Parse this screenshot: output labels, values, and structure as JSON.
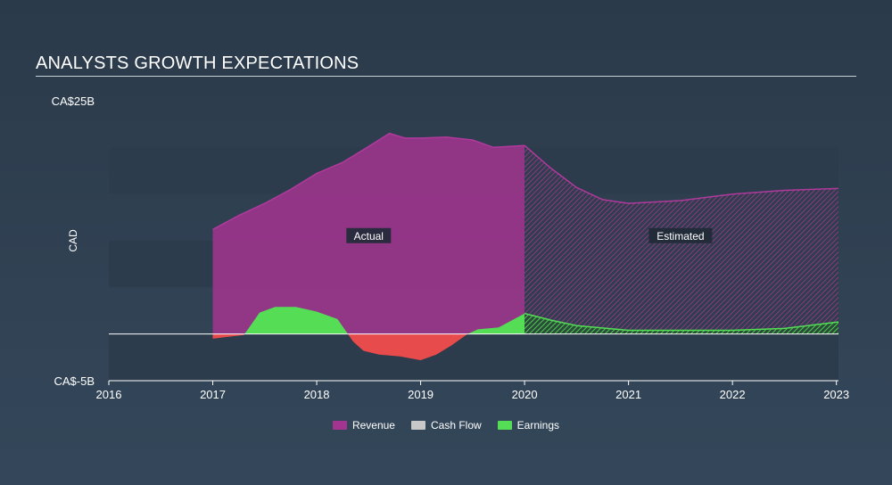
{
  "title": "ANALYSTS GROWTH EXPECTATIONS",
  "colors": {
    "revenue": "#a3348f",
    "cash_flow": "#c8c8c8",
    "earnings": "#55dd55",
    "negative": "#e84b4b",
    "band": "#2c3c4c"
  },
  "chart_data": {
    "type": "area",
    "title": "ANALYSTS GROWTH EXPECTATIONS",
    "ylabel": "CAD",
    "ylim": [
      -5,
      25
    ],
    "xlim": [
      2016,
      2023.02
    ],
    "y_tick_labels": [
      "CA$25B",
      "CA$-5B"
    ],
    "x_ticks": [
      2016,
      2017,
      2018,
      2019,
      2020,
      2021,
      2022,
      2023
    ],
    "x_tick_labels": [
      "2016",
      "2017",
      "2018",
      "2019",
      "2020",
      "2021",
      "2022",
      "2023"
    ],
    "split_x": 2020,
    "region_labels": {
      "actual": "Actual",
      "estimated": "Estimated"
    },
    "legend": [
      "Revenue",
      "Cash Flow",
      "Earnings"
    ],
    "series": [
      {
        "name": "Revenue",
        "x": [
          2017.0,
          2017.25,
          2017.5,
          2017.75,
          2018.0,
          2018.25,
          2018.5,
          2018.7,
          2018.85,
          2019.0,
          2019.25,
          2019.5,
          2019.7,
          2020.0,
          2020.25,
          2020.5,
          2020.75,
          2021.0,
          2021.5,
          2022.0,
          2022.5,
          2023.02
        ],
        "values": [
          11.2,
          12.7,
          14.0,
          15.5,
          17.2,
          18.4,
          20.1,
          21.5,
          21.0,
          21.0,
          21.1,
          20.8,
          20.0,
          20.2,
          17.8,
          15.7,
          14.4,
          14.0,
          14.3,
          15.0,
          15.4,
          15.6
        ]
      },
      {
        "name": "Earnings",
        "x": [
          2017.0,
          2017.3,
          2017.45,
          2017.6,
          2017.8,
          2018.0,
          2018.2,
          2018.35,
          2018.45,
          2018.6,
          2018.8,
          2019.0,
          2019.15,
          2019.3,
          2019.45,
          2019.55,
          2019.75,
          2020.0,
          2020.25,
          2020.5,
          2021.0,
          2021.5,
          2022.0,
          2022.5,
          2023.02
        ],
        "values": [
          -0.5,
          -0.1,
          2.3,
          2.9,
          2.9,
          2.4,
          1.6,
          -0.8,
          -1.8,
          -2.2,
          -2.4,
          -2.8,
          -2.2,
          -1.2,
          0.0,
          0.5,
          0.7,
          2.2,
          1.5,
          0.9,
          0.4,
          0.4,
          0.4,
          0.6,
          1.3
        ]
      }
    ]
  }
}
